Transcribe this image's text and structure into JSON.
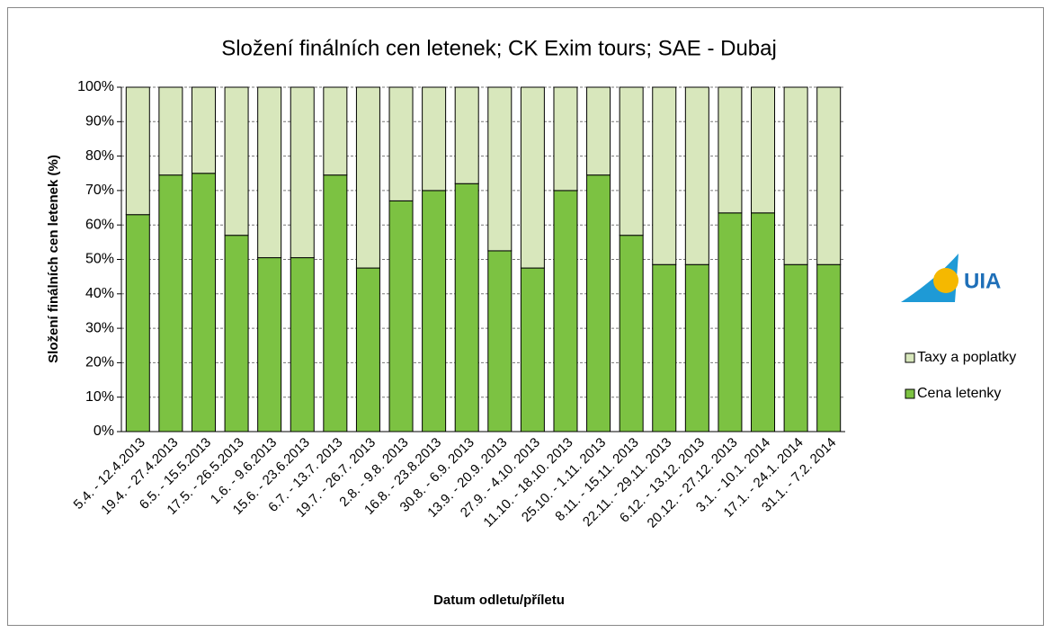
{
  "chart_data": {
    "type": "stacked-bar",
    "title": "Složení finálních cen letenek; CK Exim tours; SAE - Dubaj",
    "x_label": "Datum odletu/příletu",
    "y_label": "Složení finálních cen letenek (%)",
    "logo_text": "UIA",
    "categories": [
      "5.4. - 12.4.2013",
      "19.4. - 27.4.2013",
      "6.5. - 15.5.2013",
      "17.5. - 26.5.2013",
      "1.6. - 9.6.2013",
      "15.6. - 23.6.2013",
      "6.7. - 13.7. 2013",
      "19.7. - 26.7. 2013",
      "2.8. - 9.8. 2013",
      "16.8. - 23.8.2013",
      "30.8. - 6.9. 2013",
      "13.9. - 20.9. 2013",
      "27.9. - 4.10. 2013",
      "11.10. - 18.10. 2013",
      "25.10. - 1.11. 2013",
      "8.11. - 15.11. 2013",
      "22.11. - 29.11. 2013",
      "6.12. - 13.12. 2013",
      "20.12. - 27.12. 2013",
      "3.1. - 10.1. 2014",
      "17.1. - 24.1. 2014",
      "31.1. - 7.2. 2014"
    ],
    "series": [
      {
        "name": "Cena letenky",
        "color": "#7cc242",
        "values": [
          63,
          74.5,
          75,
          57,
          50.5,
          50.5,
          74.5,
          47.5,
          67,
          70,
          72,
          52.5,
          47.5,
          70,
          74.5,
          57,
          48.5,
          48.5,
          63.5,
          63.5,
          48.5,
          48.5
        ]
      },
      {
        "name": "Taxy a poplatky",
        "color": "#d8e7bc",
        "values": [
          37,
          25.5,
          25,
          43,
          49.5,
          49.5,
          25.5,
          52.5,
          33,
          30,
          28,
          47.5,
          52.5,
          30,
          25.5,
          43,
          51.5,
          51.5,
          36.5,
          36.5,
          51.5,
          51.5
        ]
      }
    ],
    "ylim": [
      0,
      100
    ],
    "yticks": [
      {
        "value": 0,
        "label": "0%"
      },
      {
        "value": 10,
        "label": "10%"
      },
      {
        "value": 20,
        "label": "20%"
      },
      {
        "value": 30,
        "label": "30%"
      },
      {
        "value": 40,
        "label": "40%"
      },
      {
        "value": 50,
        "label": "50%"
      },
      {
        "value": 60,
        "label": "60%"
      },
      {
        "value": 70,
        "label": "70%"
      },
      {
        "value": 80,
        "label": "80%"
      },
      {
        "value": 90,
        "label": "90%"
      },
      {
        "value": 100,
        "label": "100%"
      }
    ],
    "grid": true,
    "legend_position": "right"
  }
}
